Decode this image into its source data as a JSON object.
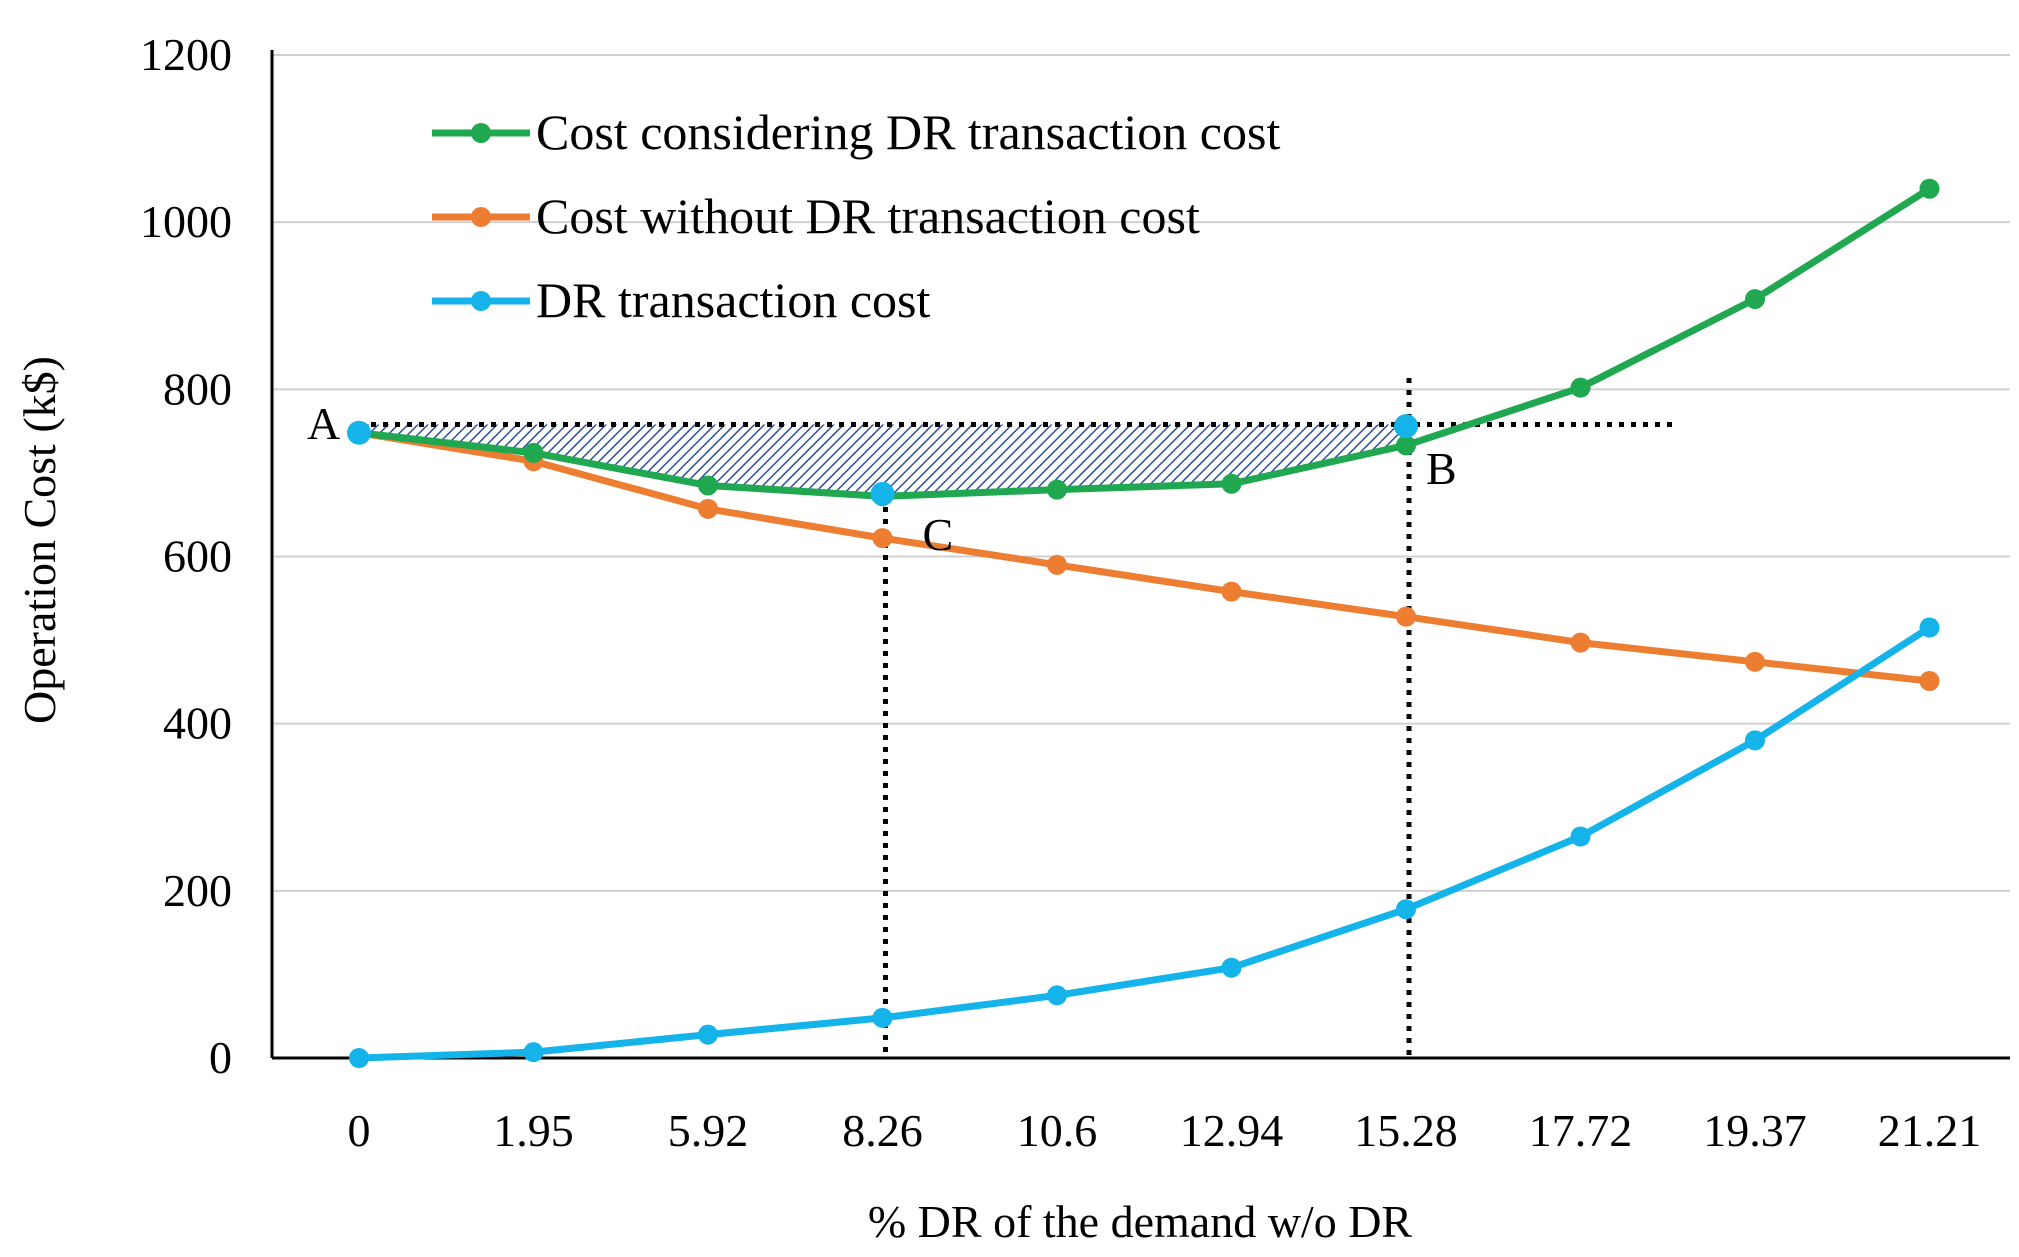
{
  "chart_data": {
    "type": "line",
    "title": "",
    "xlabel": "% DR of the demand w/o DR",
    "ylabel": "Operation  Cost  (k$)",
    "categories": [
      "0",
      "1.95",
      "5.92",
      "8.26",
      "10.6",
      "12.94",
      "15.28",
      "17.72",
      "19.37",
      "21.21"
    ],
    "ylim": [
      0,
      1200
    ],
    "yticks": [
      0,
      200,
      400,
      600,
      800,
      1000,
      1200
    ],
    "grid": true,
    "legend_position": "top-left",
    "series": [
      {
        "name": "Cost considering DR transaction cost",
        "color": "#1fa84f",
        "values": [
          748,
          724,
          685,
          672,
          680,
          687,
          733,
          802,
          908,
          1040
        ]
      },
      {
        "name": "Cost without DR transaction cost",
        "color": "#ed7d31",
        "values": [
          748,
          714,
          657,
          622,
          590,
          558,
          528,
          497,
          474,
          451
        ]
      },
      {
        "name": "DR transaction cost",
        "color": "#14b3ea",
        "values": [
          0,
          7,
          28,
          48,
          75,
          108,
          178,
          265,
          380,
          515
        ]
      }
    ],
    "annotations": [
      {
        "label": "A",
        "category_index": 0,
        "value": 748
      },
      {
        "label": "B",
        "category_index": 6,
        "value": 756
      },
      {
        "label": "C",
        "category_index": 3,
        "value": 675
      }
    ],
    "reference_lines": {
      "horizontal_value": 758,
      "horizontal_from_index": 0,
      "horizontal_to_index": 7.5,
      "vertical_at_indices": [
        3,
        6
      ]
    },
    "shaded_region": {
      "from_index": 0,
      "to_index": 6.1,
      "series": "Cost considering DR transaction cost",
      "upper_value": 758
    }
  }
}
